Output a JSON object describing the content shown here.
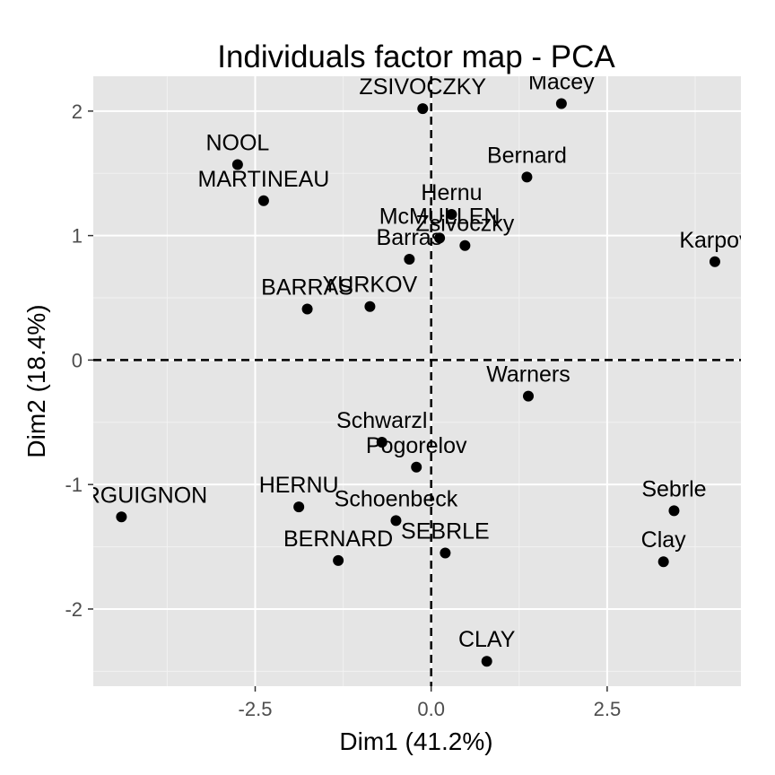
{
  "chart_data": {
    "type": "scatter",
    "title": "Individuals factor map - PCA",
    "xlabel": "Dim1 (41.2%)",
    "ylabel": "Dim2 (18.4%)",
    "xlim": [
      -4.8,
      4.4
    ],
    "ylim": [
      -2.62,
      2.28
    ],
    "x_ticks": [
      -2.5,
      0.0,
      2.5
    ],
    "x_tick_labels": [
      "-2.5",
      "0.0",
      "2.5"
    ],
    "y_ticks": [
      -2,
      -1,
      0,
      1,
      2
    ],
    "y_tick_labels": [
      "-2",
      "-1",
      "0",
      "1",
      "2"
    ],
    "grid": true,
    "reference_lines": {
      "x": 0,
      "y": 0,
      "style": "dashed"
    },
    "colors": {
      "panel_background": "#e5e5e5",
      "grid_major": "#ffffff",
      "grid_minor": "#f2f2f2",
      "point": "#000000",
      "tick_mark": "#333333"
    },
    "points": [
      {
        "label": "ZSIVOCZKY",
        "x": -0.12,
        "y": 2.02
      },
      {
        "label": "Macey",
        "x": 1.85,
        "y": 2.06
      },
      {
        "label": "NOOL",
        "x": -2.75,
        "y": 1.57
      },
      {
        "label": "MARTINEAU",
        "x": -2.38,
        "y": 1.28
      },
      {
        "label": "Bernard",
        "x": 1.36,
        "y": 1.47
      },
      {
        "label": "Hernu",
        "x": 0.29,
        "y": 1.17
      },
      {
        "label": "McMULLEN",
        "x": 0.12,
        "y": 0.98
      },
      {
        "label": "Zsivoczky",
        "x": 0.48,
        "y": 0.92
      },
      {
        "label": "Barras",
        "x": -0.31,
        "y": 0.81
      },
      {
        "label": "Karpov",
        "x": 4.03,
        "y": 0.79
      },
      {
        "label": "BARRAS",
        "x": -1.76,
        "y": 0.41
      },
      {
        "label": "YURKOV",
        "x": -0.87,
        "y": 0.43
      },
      {
        "label": "Warners",
        "x": 1.38,
        "y": -0.29
      },
      {
        "label": "Schwarzl",
        "x": -0.7,
        "y": -0.66
      },
      {
        "label": "Pogorelov",
        "x": -0.21,
        "y": -0.86
      },
      {
        "label": "BOURGUIGNON",
        "x": -4.4,
        "y": -1.26
      },
      {
        "label": "HERNU",
        "x": -1.88,
        "y": -1.18
      },
      {
        "label": "Schoenbeck",
        "x": -0.5,
        "y": -1.29
      },
      {
        "label": "BERNARD",
        "x": -1.32,
        "y": -1.61
      },
      {
        "label": "SEBRLE",
        "x": 0.2,
        "y": -1.55
      },
      {
        "label": "Sebrle",
        "x": 3.45,
        "y": -1.21
      },
      {
        "label": "Clay",
        "x": 3.3,
        "y": -1.62
      },
      {
        "label": "CLAY",
        "x": 0.79,
        "y": -2.42
      }
    ]
  }
}
